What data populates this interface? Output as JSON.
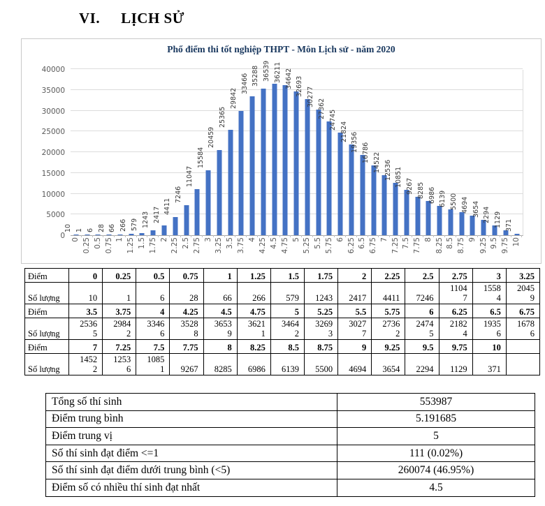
{
  "page": {
    "heading_numeral": "VI.",
    "heading_title": "LỊCH SỬ"
  },
  "chart_data": {
    "type": "bar",
    "title": "Phổ điểm thi tốt nghiệp THPT - Môn Lịch sử - năm 2020",
    "xlabel": "",
    "ylabel": "",
    "categories": [
      "0",
      "0.25",
      "0.5",
      "0.75",
      "1",
      "1.25",
      "1.5",
      "1.75",
      "2",
      "2.25",
      "2.5",
      "2.75",
      "3",
      "3.25",
      "3.5",
      "3.75",
      "4",
      "4.25",
      "4.5",
      "4.75",
      "5",
      "5.25",
      "5.5",
      "5.75",
      "6",
      "6.25",
      "6.5",
      "6.75",
      "7",
      "7.25",
      "7.5",
      "7.75",
      "8",
      "8.25",
      "8.5",
      "8.75",
      "9",
      "9.25",
      "9.5",
      "9.75",
      "10"
    ],
    "values": [
      10,
      1,
      6,
      28,
      66,
      266,
      579,
      1243,
      2417,
      4411,
      7246,
      11047,
      15584,
      20459,
      25365,
      29842,
      33466,
      35288,
      36539,
      36211,
      34642,
      32693,
      30277,
      27362,
      24745,
      21824,
      19356,
      16786,
      14522,
      12536,
      10851,
      9267,
      8285,
      6986,
      6139,
      5500,
      4694,
      3654,
      2294,
      1129,
      371
    ],
    "ylim": [
      0,
      40000
    ],
    "yticks": [
      0,
      5000,
      10000,
      15000,
      20000,
      25000,
      30000,
      35000,
      40000
    ],
    "grid": true,
    "legend": "none",
    "bar_color": "#4472c4",
    "title_color": "#17365d"
  },
  "score_table": {
    "score_label": "Điểm",
    "count_label": "Số lượng",
    "groups": [
      {
        "scores": [
          "0",
          "0.25",
          "0.5",
          "0.75",
          "1",
          "1.25",
          "1.5",
          "1.75",
          "2",
          "2.25",
          "2.5",
          "2.75",
          "3",
          "3.25"
        ],
        "counts": [
          "10",
          "1",
          "6",
          "28",
          "66",
          "266",
          "579",
          "1243",
          "2417",
          "4411",
          "7246",
          "11047",
          "15584",
          "20459"
        ]
      },
      {
        "scores": [
          "3.5",
          "3.75",
          "4",
          "4.25",
          "4.5",
          "4.75",
          "5",
          "5.25",
          "5.5",
          "5.75",
          "6",
          "6.25",
          "6.5",
          "6.75"
        ],
        "counts": [
          "25365",
          "29842",
          "33466",
          "35288",
          "36539",
          "36211",
          "34642",
          "32693",
          "30277",
          "27362",
          "24745",
          "21824",
          "19356",
          "16786"
        ]
      },
      {
        "scores": [
          "7",
          "7.25",
          "7.5",
          "7.75",
          "8",
          "8.25",
          "8.5",
          "8.75",
          "9",
          "9.25",
          "9.5",
          "9.75",
          "10",
          ""
        ],
        "counts": [
          "14522",
          "12536",
          "10851",
          "9267",
          "8285",
          "6986",
          "6139",
          "5500",
          "4694",
          "3654",
          "2294",
          "1129",
          "371",
          ""
        ]
      }
    ]
  },
  "summary_table": {
    "rows": [
      {
        "label": "Tổng số thí sinh",
        "value": "553987"
      },
      {
        "label": "Điểm trung bình",
        "value": "5.191685"
      },
      {
        "label": "Điểm trung vị",
        "value": "5"
      },
      {
        "label": "Số thí sinh đạt điểm <=1",
        "value": "111 (0.02%)"
      },
      {
        "label": "Số thí sinh đạt điểm dưới trung bình (<5)",
        "value": "260074 (46.95%)"
      },
      {
        "label": "Điểm số có nhiều thí sinh đạt nhất",
        "value": "4.5"
      }
    ]
  }
}
